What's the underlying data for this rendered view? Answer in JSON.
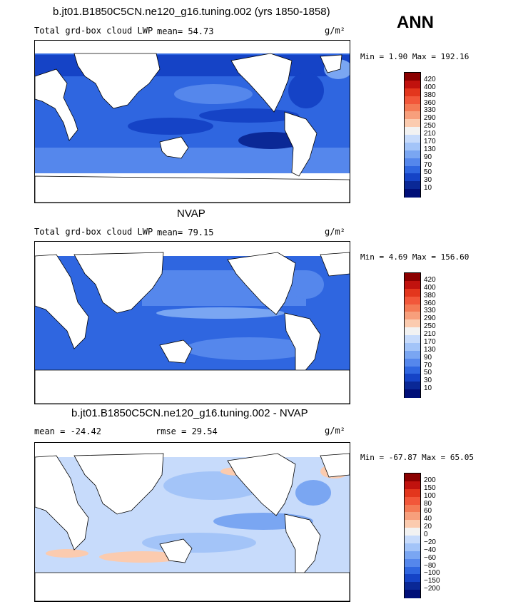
{
  "season": "ANN",
  "panels": [
    {
      "title": "b.jt01.B1850C5CN.ne120_g16.tuning.002 (yrs 1850-1858)",
      "left_label": "Total grd-box cloud LWP",
      "mean_text": "mean=  54.73",
      "rmse_text": "",
      "units": "g/m²",
      "minmax": "Min =    1.90 Max = 192.16",
      "colorbar": {
        "labels": [
          "420",
          "400",
          "380",
          "360",
          "330",
          "290",
          "250",
          "210",
          "170",
          "130",
          "90",
          "70",
          "50",
          "30",
          "10"
        ],
        "colors": [
          "#8b0000",
          "#c1120e",
          "#e3361d",
          "#f2573a",
          "#f47a55",
          "#f79f7c",
          "#fbcbaf",
          "#f2f2f2",
          "#c7dbfb",
          "#a3c4f8",
          "#7aa6f2",
          "#5587ec",
          "#2f66e0",
          "#1543c6",
          "#0a2896",
          "#000f78"
        ]
      }
    },
    {
      "title": "NVAP",
      "left_label": "Total grd-box cloud LWP",
      "mean_text": "mean=  79.15",
      "rmse_text": "",
      "units": "g/m²",
      "minmax": "Min =    4.69 Max = 156.60",
      "colorbar": {
        "labels": [
          "420",
          "400",
          "380",
          "360",
          "330",
          "290",
          "250",
          "210",
          "170",
          "130",
          "90",
          "70",
          "50",
          "30",
          "10"
        ],
        "colors": [
          "#8b0000",
          "#c1120e",
          "#e3361d",
          "#f2573a",
          "#f47a55",
          "#f79f7c",
          "#fbcbaf",
          "#f2f2f2",
          "#c7dbfb",
          "#a3c4f8",
          "#7aa6f2",
          "#5587ec",
          "#2f66e0",
          "#1543c6",
          "#0a2896",
          "#000f78"
        ]
      }
    },
    {
      "title": "b.jt01.B1850C5CN.ne120_g16.tuning.002 - NVAP",
      "left_label": "mean = -24.42",
      "mean_text": "",
      "rmse_text": "rmse =   29.54",
      "units": "g/m²",
      "minmax": "Min = -67.87 Max =   65.05",
      "colorbar": {
        "labels": [
          "200",
          "150",
          "100",
          "80",
          "60",
          "40",
          "20",
          "0",
          "−20",
          "−40",
          "−60",
          "−80",
          "−100",
          "−150",
          "−200"
        ],
        "colors": [
          "#8b0000",
          "#c1120e",
          "#e3361d",
          "#f2573a",
          "#f47a55",
          "#f79f7c",
          "#fbcbaf",
          "#f2f2f2",
          "#c7dbfb",
          "#a3c4f8",
          "#7aa6f2",
          "#5587ec",
          "#2f66e0",
          "#1543c6",
          "#0a2896",
          "#000f78"
        ]
      }
    }
  ],
  "chart_data": [
    {
      "type": "heatmap",
      "title": "b.jt01.B1850C5CN.ne120_g16.tuning.002 (yrs 1850-1858)",
      "variable": "Total grd-box cloud LWP",
      "units": "g/m²",
      "mean": 54.73,
      "min": 1.9,
      "max": 192.16,
      "contour_levels": [
        10,
        30,
        50,
        70,
        90,
        130,
        170,
        210,
        250,
        290,
        330,
        360,
        380,
        400,
        420
      ]
    },
    {
      "type": "heatmap",
      "title": "NVAP",
      "variable": "Total grd-box cloud LWP",
      "units": "g/m²",
      "mean": 79.15,
      "min": 4.69,
      "max": 156.6,
      "contour_levels": [
        10,
        30,
        50,
        70,
        90,
        130,
        170,
        210,
        250,
        290,
        330,
        360,
        380,
        400,
        420
      ]
    },
    {
      "type": "heatmap",
      "title": "b.jt01.B1850C5CN.ne120_g16.tuning.002 - NVAP",
      "units": "g/m²",
      "mean": -24.42,
      "rmse": 29.54,
      "min": -67.87,
      "max": 65.05,
      "contour_levels": [
        -200,
        -150,
        -100,
        -80,
        -60,
        -40,
        -20,
        0,
        20,
        40,
        60,
        80,
        100,
        150,
        200
      ]
    }
  ]
}
